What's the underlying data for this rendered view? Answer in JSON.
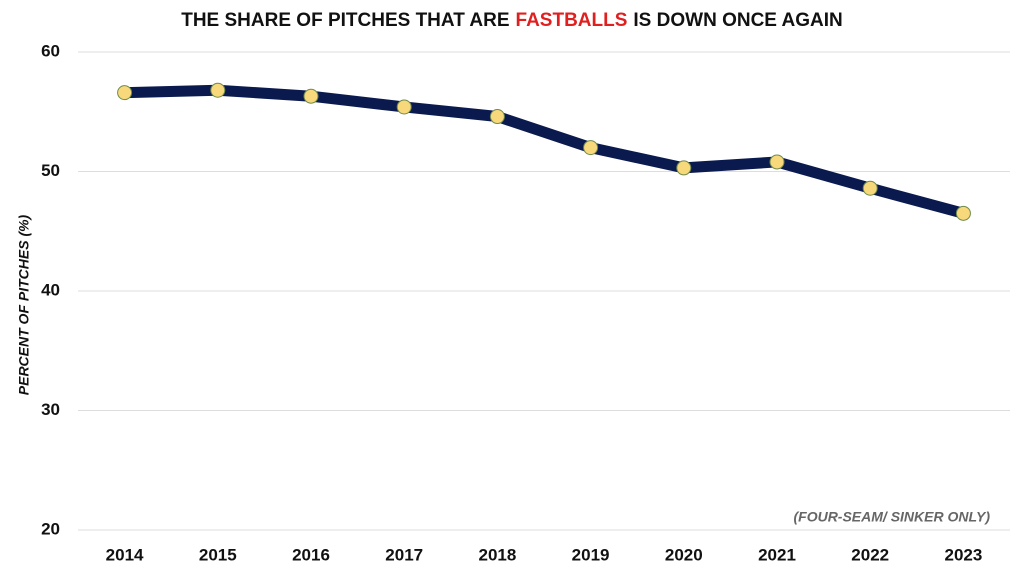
{
  "chart_data": {
    "type": "line",
    "title_parts": [
      {
        "text": "THE SHARE OF PITCHES THAT ARE",
        "color": "#111111"
      },
      {
        "text": "FASTBALLS",
        "color": "#e02020"
      },
      {
        "text": "IS DOWN ONCE AGAIN",
        "color": "#111111"
      }
    ],
    "y_label": "PERCENT OF PITCHES (%)",
    "annotation": "(FOUR-SEAM/ SINKER ONLY)",
    "categories": [
      "2014",
      "2015",
      "2016",
      "2017",
      "2018",
      "2019",
      "2020",
      "2021",
      "2022",
      "2023"
    ],
    "values": [
      56.6,
      56.8,
      56.3,
      55.4,
      54.6,
      52.0,
      50.3,
      50.8,
      48.6,
      46.5
    ],
    "color": "#0b1a4e",
    "marker_color": "#f7d97c",
    "ylim": [
      20,
      60
    ],
    "yticks": [
      20,
      30,
      40,
      50,
      60
    ],
    "grid": true
  }
}
